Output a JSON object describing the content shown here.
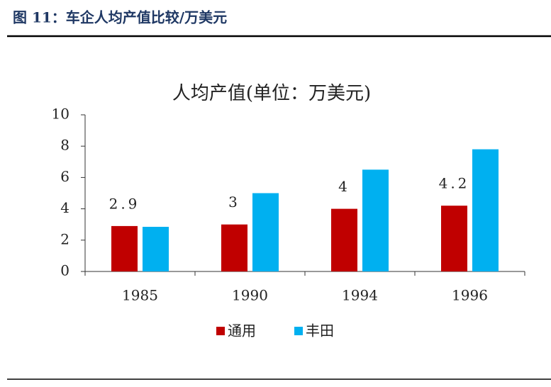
{
  "caption": "图 11：车企人均产值比较/万美元",
  "chart_data": {
    "type": "bar",
    "title": "人均产值(单位：万美元)",
    "categories": [
      "1985",
      "1990",
      "1994",
      "1996"
    ],
    "series": [
      {
        "name": "通用",
        "color": "#c00000",
        "values": [
          2.9,
          3,
          4,
          4.2
        ],
        "show_labels": true
      },
      {
        "name": "丰田",
        "color": "#00b0f0",
        "values": [
          2.85,
          5.0,
          6.5,
          7.8
        ],
        "show_labels": false
      }
    ],
    "ylim": [
      0,
      10
    ],
    "yticks": [
      0,
      2,
      4,
      6,
      8,
      10
    ],
    "grid": false,
    "legend": "bottom"
  }
}
